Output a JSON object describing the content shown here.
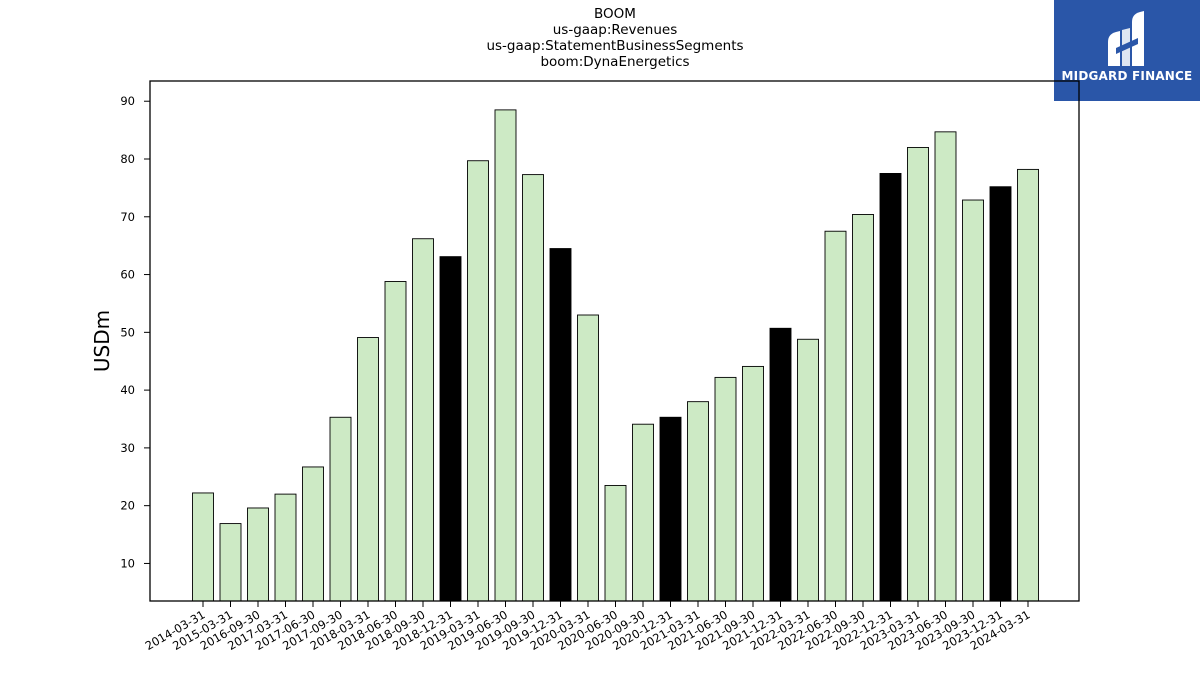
{
  "header": {
    "title_lines": [
      "BOOM",
      "us-gaap:Revenues",
      "us-gaap:StatementBusinessSegments",
      "boom:DynaEnergetics"
    ]
  },
  "logo": {
    "text": "MIDGARD FINANCE",
    "background": "#2a56a8",
    "icon": "midgard-logo-icon"
  },
  "chart_data": {
    "type": "bar",
    "ylabel": "USDm",
    "ylim": [
      3.5,
      93.5
    ],
    "yticks": [
      10,
      20,
      30,
      40,
      50,
      60,
      70,
      80,
      90
    ],
    "grid": false,
    "colors": {
      "default": "#cdeac5",
      "q4": "#000000",
      "edge": "#000000"
    },
    "categories": [
      "2014-03-31",
      "2015-03-31",
      "2016-09-30",
      "2017-03-31",
      "2017-06-30",
      "2017-09-30",
      "2018-03-31",
      "2018-06-30",
      "2018-09-30",
      "2018-12-31",
      "2019-03-31",
      "2019-06-30",
      "2019-09-30",
      "2019-12-31",
      "2020-03-31",
      "2020-06-30",
      "2020-09-30",
      "2020-12-31",
      "2021-03-31",
      "2021-06-30",
      "2021-09-30",
      "2021-12-31",
      "2022-03-31",
      "2022-06-30",
      "2022-09-30",
      "2022-12-31",
      "2023-03-31",
      "2023-06-30",
      "2023-09-30",
      "2023-12-31",
      "2024-03-31"
    ],
    "values": [
      22.2,
      16.9,
      19.6,
      22.0,
      26.7,
      35.3,
      49.1,
      58.8,
      66.2,
      63.1,
      79.7,
      88.5,
      77.3,
      64.5,
      53.0,
      23.5,
      34.1,
      35.3,
      38.0,
      42.2,
      44.1,
      50.7,
      48.8,
      67.5,
      70.4,
      77.5,
      82.0,
      84.7,
      72.9,
      75.2,
      78.2
    ]
  }
}
